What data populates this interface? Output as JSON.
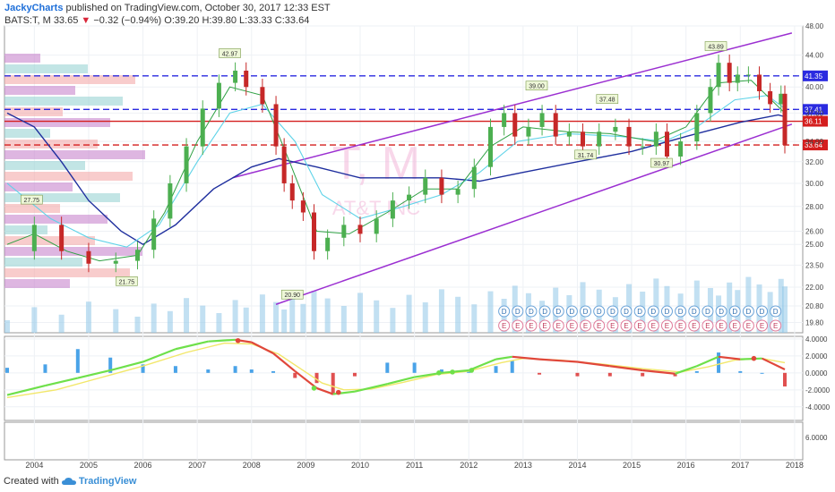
{
  "header": {
    "author": "JackyCharts",
    "published_text": "published on TradingView.com, October 30, 2017 12:33 EST",
    "symbol": "BATS:T, M",
    "last": "33.65",
    "change_arrow": "▼",
    "change": "−0.32 (−0.94%)",
    "ohlc": "O:39.20 H:39.80 L:33.33 C:33.64"
  },
  "footer": {
    "created_with": "Created with",
    "brand": "TradingView"
  },
  "watermark": {
    "symbol": "T, M",
    "name": "AT&T INC"
  },
  "chart_data": [
    {
      "type": "candlestick",
      "panel": "price",
      "y_scale": "log",
      "ylim": [
        19.2,
        48.0
      ],
      "xlim": [
        2003.45,
        2018.15
      ],
      "y_ticks": [
        "48.00",
        "44.00",
        "40.00",
        "37.00",
        "34.00",
        "32.00",
        "30.00",
        "28.00",
        "26.00",
        "25.00",
        "23.50",
        "22.00",
        "20.80",
        "19.80"
      ],
      "x_ticks": [
        "2004",
        "2005",
        "2006",
        "2007",
        "2008",
        "2009",
        "2010",
        "2011",
        "2012",
        "2013",
        "2014",
        "2015",
        "2016",
        "2017",
        "2018"
      ],
      "closes": [
        {
          "x": 2003.5,
          "y": 24.5
        },
        {
          "x": 2004.0,
          "y": 26.5
        },
        {
          "x": 2004.5,
          "y": 24.5
        },
        {
          "x": 2005.0,
          "y": 23.6
        },
        {
          "x": 2005.5,
          "y": 23.8
        },
        {
          "x": 2005.9,
          "y": 24.6
        },
        {
          "x": 2006.2,
          "y": 27.0
        },
        {
          "x": 2006.5,
          "y": 30.0
        },
        {
          "x": 2006.8,
          "y": 33.5
        },
        {
          "x": 2007.1,
          "y": 37.5
        },
        {
          "x": 2007.4,
          "y": 40.5
        },
        {
          "x": 2007.7,
          "y": 42.0
        },
        {
          "x": 2007.9,
          "y": 40.0
        },
        {
          "x": 2008.2,
          "y": 38.0
        },
        {
          "x": 2008.45,
          "y": 33.5
        },
        {
          "x": 2008.6,
          "y": 30.0
        },
        {
          "x": 2008.75,
          "y": 28.5
        },
        {
          "x": 2008.95,
          "y": 27.5
        },
        {
          "x": 2009.15,
          "y": 24.5
        },
        {
          "x": 2009.4,
          "y": 25.5
        },
        {
          "x": 2009.7,
          "y": 26.5
        },
        {
          "x": 2010.0,
          "y": 25.8
        },
        {
          "x": 2010.3,
          "y": 27.0
        },
        {
          "x": 2010.6,
          "y": 28.5
        },
        {
          "x": 2010.9,
          "y": 29.0
        },
        {
          "x": 2011.2,
          "y": 30.5
        },
        {
          "x": 2011.5,
          "y": 29.0
        },
        {
          "x": 2011.8,
          "y": 29.5
        },
        {
          "x": 2012.1,
          "y": 31.5
        },
        {
          "x": 2012.4,
          "y": 35.5
        },
        {
          "x": 2012.65,
          "y": 37.0
        },
        {
          "x": 2012.85,
          "y": 34.5
        },
        {
          "x": 2013.1,
          "y": 35.5
        },
        {
          "x": 2013.35,
          "y": 37.0
        },
        {
          "x": 2013.6,
          "y": 34.5
        },
        {
          "x": 2013.85,
          "y": 35.0
        },
        {
          "x": 2014.1,
          "y": 33.5
        },
        {
          "x": 2014.4,
          "y": 35.0
        },
        {
          "x": 2014.7,
          "y": 35.5
        },
        {
          "x": 2014.95,
          "y": 33.5
        },
        {
          "x": 2015.2,
          "y": 33.5
        },
        {
          "x": 2015.45,
          "y": 35.0
        },
        {
          "x": 2015.65,
          "y": 32.5
        },
        {
          "x": 2015.9,
          "y": 34.0
        },
        {
          "x": 2016.2,
          "y": 37.0
        },
        {
          "x": 2016.45,
          "y": 40.0
        },
        {
          "x": 2016.6,
          "y": 43.0
        },
        {
          "x": 2016.8,
          "y": 40.5
        },
        {
          "x": 2016.95,
          "y": 41.5
        },
        {
          "x": 2017.15,
          "y": 41.5
        },
        {
          "x": 2017.35,
          "y": 39.5
        },
        {
          "x": 2017.55,
          "y": 38.0
        },
        {
          "x": 2017.75,
          "y": 39.2
        },
        {
          "x": 2017.82,
          "y": 33.64
        }
      ],
      "lines": {
        "ema_long": [
          {
            "x": 2003.5,
            "y": 37.0
          },
          {
            "x": 2004.0,
            "y": 35.5
          },
          {
            "x": 2004.5,
            "y": 32.0
          },
          {
            "x": 2005.0,
            "y": 28.5
          },
          {
            "x": 2005.6,
            "y": 26.0
          },
          {
            "x": 2006.0,
            "y": 25.0
          },
          {
            "x": 2006.6,
            "y": 26.5
          },
          {
            "x": 2007.3,
            "y": 29.5
          },
          {
            "x": 2008.0,
            "y": 31.5
          },
          {
            "x": 2008.5,
            "y": 32.3
          },
          {
            "x": 2009.2,
            "y": 31.5
          },
          {
            "x": 2010.0,
            "y": 30.5
          },
          {
            "x": 2010.8,
            "y": 30.5
          },
          {
            "x": 2011.5,
            "y": 30.5
          },
          {
            "x": 2012.2,
            "y": 30.2
          },
          {
            "x": 2013.0,
            "y": 31.0
          },
          {
            "x": 2014.0,
            "y": 32.0
          },
          {
            "x": 2015.0,
            "y": 33.0
          },
          {
            "x": 2016.0,
            "y": 34.5
          },
          {
            "x": 2017.0,
            "y": 36.0
          },
          {
            "x": 2017.7,
            "y": 36.8
          },
          {
            "x": 2017.82,
            "y": 36.6
          }
        ],
        "ema_mid": [
          {
            "x": 2003.5,
            "y": 30.0
          },
          {
            "x": 2004.3,
            "y": 27.0
          },
          {
            "x": 2005.0,
            "y": 25.5
          },
          {
            "x": 2005.7,
            "y": 24.8
          },
          {
            "x": 2006.3,
            "y": 26.5
          },
          {
            "x": 2007.0,
            "y": 32.0
          },
          {
            "x": 2007.6,
            "y": 37.0
          },
          {
            "x": 2008.2,
            "y": 38.0
          },
          {
            "x": 2008.8,
            "y": 34.0
          },
          {
            "x": 2009.3,
            "y": 29.0
          },
          {
            "x": 2010.0,
            "y": 27.0
          },
          {
            "x": 2010.8,
            "y": 28.0
          },
          {
            "x": 2011.5,
            "y": 29.0
          },
          {
            "x": 2012.2,
            "y": 31.0
          },
          {
            "x": 2012.9,
            "y": 34.0
          },
          {
            "x": 2013.8,
            "y": 34.8
          },
          {
            "x": 2014.8,
            "y": 34.5
          },
          {
            "x": 2015.6,
            "y": 34.0
          },
          {
            "x": 2016.2,
            "y": 35.5
          },
          {
            "x": 2016.9,
            "y": 38.5
          },
          {
            "x": 2017.5,
            "y": 39.0
          },
          {
            "x": 2017.82,
            "y": 37.5
          }
        ],
        "ema_short": [
          {
            "x": 2003.5,
            "y": 25.0
          },
          {
            "x": 2004.0,
            "y": 25.8
          },
          {
            "x": 2004.6,
            "y": 24.5
          },
          {
            "x": 2005.2,
            "y": 23.8
          },
          {
            "x": 2005.9,
            "y": 24.2
          },
          {
            "x": 2006.4,
            "y": 27.5
          },
          {
            "x": 2007.0,
            "y": 34.0
          },
          {
            "x": 2007.6,
            "y": 40.0
          },
          {
            "x": 2008.2,
            "y": 39.0
          },
          {
            "x": 2008.7,
            "y": 32.0
          },
          {
            "x": 2009.2,
            "y": 26.0
          },
          {
            "x": 2009.8,
            "y": 25.8
          },
          {
            "x": 2010.5,
            "y": 27.5
          },
          {
            "x": 2011.2,
            "y": 29.5
          },
          {
            "x": 2011.8,
            "y": 29.5
          },
          {
            "x": 2012.4,
            "y": 33.5
          },
          {
            "x": 2013.0,
            "y": 35.5
          },
          {
            "x": 2013.8,
            "y": 35.0
          },
          {
            "x": 2014.6,
            "y": 34.8
          },
          {
            "x": 2015.4,
            "y": 34.0
          },
          {
            "x": 2016.0,
            "y": 35.5
          },
          {
            "x": 2016.6,
            "y": 40.5
          },
          {
            "x": 2017.2,
            "y": 40.8
          },
          {
            "x": 2017.82,
            "y": 37.0
          }
        ]
      },
      "trend_channel": [
        {
          "x1": 2007.65,
          "y1": 30.5,
          "x2": 2017.95,
          "y2": 47.0
        },
        {
          "x1": 2008.45,
          "y1": 20.9,
          "x2": 2017.95,
          "y2": 35.8
        }
      ],
      "horizontal_levels": [
        {
          "value": "41.35",
          "y": 41.35,
          "color": "#2a2ae0",
          "style": "dashed"
        },
        {
          "value": "37.41",
          "y": 37.41,
          "color": "#2a2ae0",
          "style": "dashed"
        },
        {
          "value": "36.11",
          "y": 36.11,
          "color": "#d41e1e",
          "style": "solid"
        },
        {
          "value": "33.64",
          "y": 33.64,
          "color": "#d41e1e",
          "style": "dashed"
        }
      ],
      "annotations": [
        {
          "text": "42.97",
          "x": 2007.6,
          "y": 42.97
        },
        {
          "text": "39.00",
          "x": 2013.25,
          "y": 39.0
        },
        {
          "text": "37.48",
          "x": 2014.55,
          "y": 37.48
        },
        {
          "text": "43.89",
          "x": 2016.55,
          "y": 43.89
        },
        {
          "text": "27.75",
          "x": 2003.95,
          "y": 27.75
        },
        {
          "text": "21.75",
          "x": 2005.7,
          "y": 21.75
        },
        {
          "text": "20.90",
          "x": 2008.75,
          "y": 20.9
        },
        {
          "text": "31.74",
          "x": 2014.15,
          "y": 31.74
        },
        {
          "text": "30.97",
          "x": 2015.55,
          "y": 30.97
        }
      ],
      "event_markers": {
        "dividend_label": "D",
        "earnings_label": "E",
        "x": [
          2012.65,
          2012.9,
          2013.15,
          2013.4,
          2013.65,
          2013.9,
          2014.15,
          2014.4,
          2014.65,
          2014.9,
          2015.15,
          2015.4,
          2015.65,
          2015.9,
          2016.15,
          2016.4,
          2016.65,
          2016.9,
          2017.15,
          2017.4,
          2017.65
        ]
      },
      "colors": {
        "up": "#4caf50",
        "down": "#c62828",
        "ema_long": "#1f2f9e",
        "ema_mid": "#5fd3e8",
        "ema_short": "#2ea043",
        "channel": "#9b2fd1",
        "volume": "#8fc7e8"
      }
    },
    {
      "type": "line",
      "panel": "macd",
      "ylim": [
        -5.6,
        4.3
      ],
      "y_ticks": [
        "4.0000",
        "2.0000",
        "0.0000",
        "-2.0000",
        "-4.0000"
      ],
      "macd": [
        {
          "x": 2003.5,
          "y": -2.6
        },
        {
          "x": 2004.2,
          "y": -1.5
        },
        {
          "x": 2004.8,
          "y": -0.6
        },
        {
          "x": 2005.4,
          "y": 0.3
        },
        {
          "x": 2006.0,
          "y": 1.3
        },
        {
          "x": 2006.6,
          "y": 2.8
        },
        {
          "x": 2007.2,
          "y": 3.7
        },
        {
          "x": 2007.7,
          "y": 3.9
        },
        {
          "x": 2008.0,
          "y": 3.6
        },
        {
          "x": 2008.4,
          "y": 2.3
        },
        {
          "x": 2008.8,
          "y": 0.2
        },
        {
          "x": 2009.2,
          "y": -1.8
        },
        {
          "x": 2009.5,
          "y": -2.5
        },
        {
          "x": 2009.9,
          "y": -2.2
        },
        {
          "x": 2010.5,
          "y": -1.3
        },
        {
          "x": 2011.0,
          "y": -0.5
        },
        {
          "x": 2011.5,
          "y": 0.0
        },
        {
          "x": 2012.0,
          "y": 0.3
        },
        {
          "x": 2012.5,
          "y": 1.6
        },
        {
          "x": 2012.8,
          "y": 1.9
        },
        {
          "x": 2013.3,
          "y": 1.6
        },
        {
          "x": 2014.0,
          "y": 1.3
        },
        {
          "x": 2014.6,
          "y": 0.8
        },
        {
          "x": 2015.2,
          "y": 0.3
        },
        {
          "x": 2015.8,
          "y": -0.1
        },
        {
          "x": 2016.2,
          "y": 0.8
        },
        {
          "x": 2016.6,
          "y": 1.9
        },
        {
          "x": 2017.0,
          "y": 1.6
        },
        {
          "x": 2017.4,
          "y": 1.7
        },
        {
          "x": 2017.82,
          "y": 0.4
        }
      ],
      "signal": [
        {
          "x": 2003.5,
          "y": -2.9
        },
        {
          "x": 2004.4,
          "y": -2.0
        },
        {
          "x": 2005.2,
          "y": -0.6
        },
        {
          "x": 2006.0,
          "y": 0.8
        },
        {
          "x": 2006.8,
          "y": 2.4
        },
        {
          "x": 2007.5,
          "y": 3.5
        },
        {
          "x": 2008.0,
          "y": 3.4
        },
        {
          "x": 2008.5,
          "y": 2.2
        },
        {
          "x": 2008.9,
          "y": 0.5
        },
        {
          "x": 2009.3,
          "y": -1.2
        },
        {
          "x": 2009.7,
          "y": -2.0
        },
        {
          "x": 2010.2,
          "y": -1.9
        },
        {
          "x": 2010.8,
          "y": -1.1
        },
        {
          "x": 2011.4,
          "y": -0.2
        },
        {
          "x": 2012.0,
          "y": 0.2
        },
        {
          "x": 2012.6,
          "y": 1.2
        },
        {
          "x": 2013.0,
          "y": 1.7
        },
        {
          "x": 2013.7,
          "y": 1.5
        },
        {
          "x": 2014.5,
          "y": 1.0
        },
        {
          "x": 2015.2,
          "y": 0.5
        },
        {
          "x": 2015.9,
          "y": 0.1
        },
        {
          "x": 2016.4,
          "y": 0.7
        },
        {
          "x": 2016.9,
          "y": 1.5
        },
        {
          "x": 2017.4,
          "y": 1.7
        },
        {
          "x": 2017.82,
          "y": 1.2
        }
      ],
      "crosses": [
        {
          "x": 2007.75,
          "y": 3.8
        },
        {
          "x": 2009.15,
          "y": -1.8
        },
        {
          "x": 2009.6,
          "y": -2.3
        },
        {
          "x": 2011.45,
          "y": 0.0
        },
        {
          "x": 2011.7,
          "y": 0.1
        },
        {
          "x": 2012.05,
          "y": 0.3
        },
        {
          "x": 2017.25,
          "y": 1.7
        }
      ],
      "colors": {
        "macd_up": "#6ee04a",
        "macd_down": "#e0473a",
        "signal": "#f2e76a",
        "hist_up": "#4aa3e8",
        "hist_down": "#e05050"
      }
    },
    {
      "type": "line",
      "panel": "lower",
      "y_ticks": [
        "6.0000"
      ]
    }
  ]
}
